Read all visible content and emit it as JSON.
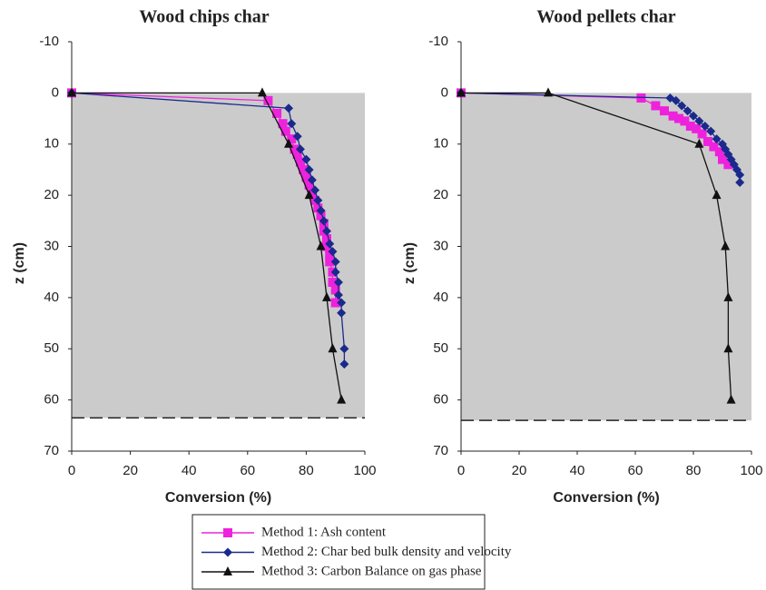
{
  "chart_data": [
    {
      "type": "scatter",
      "title": "Wood chips char",
      "x_label": "Conversion (%)",
      "y_label": "z (cm)",
      "xlim": [
        0,
        100
      ],
      "ylim": [
        -10,
        70
      ],
      "y_inverted": true,
      "xticks": [
        0,
        20,
        40,
        60,
        80,
        100
      ],
      "yticks": [
        -10,
        0,
        10,
        20,
        30,
        40,
        50,
        60,
        70
      ],
      "bed_bottom": 63.5,
      "series": [
        {
          "name": "Method 1: Ash content",
          "color": "#ee22dd",
          "marker": "square",
          "x": [
            0,
            67,
            70,
            72,
            73,
            75,
            76,
            77,
            78,
            79,
            80,
            81,
            82,
            83,
            84,
            85,
            86,
            86,
            87,
            87,
            88,
            88,
            89,
            89,
            90,
            90
          ],
          "y": [
            0,
            1.5,
            4,
            6,
            7.5,
            9,
            11,
            12,
            13.5,
            15,
            16.5,
            18,
            19.5,
            21,
            22.5,
            24,
            25.5,
            27,
            28.5,
            30,
            31.5,
            33,
            35,
            37,
            38.5,
            41
          ]
        },
        {
          "name": "Method 2: Char bed bulk density and velocity",
          "color": "#1a2a8c",
          "marker": "diamond",
          "x": [
            0,
            74,
            75,
            77,
            78,
            80,
            81,
            82,
            83,
            84,
            85,
            86,
            87,
            88,
            89,
            90,
            90,
            91,
            91,
            92,
            92,
            93,
            93
          ],
          "y": [
            0,
            3,
            6,
            8.5,
            11,
            13,
            15,
            17,
            19,
            21,
            23,
            25,
            27,
            29.5,
            31,
            33,
            35,
            37,
            39.5,
            41,
            43,
            50,
            53
          ]
        },
        {
          "name": "Method 3: Carbon Balance on gas phase",
          "color": "#111111",
          "marker": "triangle",
          "x": [
            0,
            65,
            74,
            81,
            85,
            87,
            89,
            92
          ],
          "y": [
            0,
            0,
            10,
            20,
            30,
            40,
            50,
            60
          ]
        }
      ]
    },
    {
      "type": "scatter",
      "title": "Wood pellets char",
      "x_label": "Conversion (%)",
      "y_label": "z (cm)",
      "xlim": [
        0,
        100
      ],
      "ylim": [
        -10,
        70
      ],
      "y_inverted": true,
      "xticks": [
        0,
        20,
        40,
        60,
        80,
        100
      ],
      "yticks": [
        -10,
        0,
        10,
        20,
        30,
        40,
        50,
        60,
        70
      ],
      "bed_bottom": 64,
      "series": [
        {
          "color": "#ee22dd",
          "marker": "square",
          "x": [
            0,
            62,
            67,
            70,
            73,
            75,
            77,
            79,
            81,
            83,
            85,
            87,
            89,
            90,
            92
          ],
          "y": [
            0,
            1,
            2.5,
            3.5,
            4.5,
            5,
            5.5,
            6.5,
            7,
            8,
            9.5,
            10.5,
            11.5,
            13,
            14
          ]
        },
        {
          "color": "#1a2a8c",
          "marker": "diamond",
          "x": [
            0,
            72,
            74,
            76,
            78,
            80,
            82,
            84,
            86,
            88,
            90,
            91,
            92,
            93,
            94,
            95,
            96,
            96
          ],
          "y": [
            0,
            1,
            1.5,
            2.5,
            3.5,
            4.5,
            5.5,
            6.5,
            7.5,
            9,
            10,
            11,
            12,
            13,
            14,
            15,
            16,
            17.5
          ]
        },
        {
          "color": "#111111",
          "marker": "triangle",
          "x": [
            0,
            30,
            82,
            88,
            91,
            92,
            92,
            93
          ],
          "y": [
            0,
            0,
            10,
            20,
            30,
            40,
            50,
            60
          ]
        }
      ]
    }
  ]
}
